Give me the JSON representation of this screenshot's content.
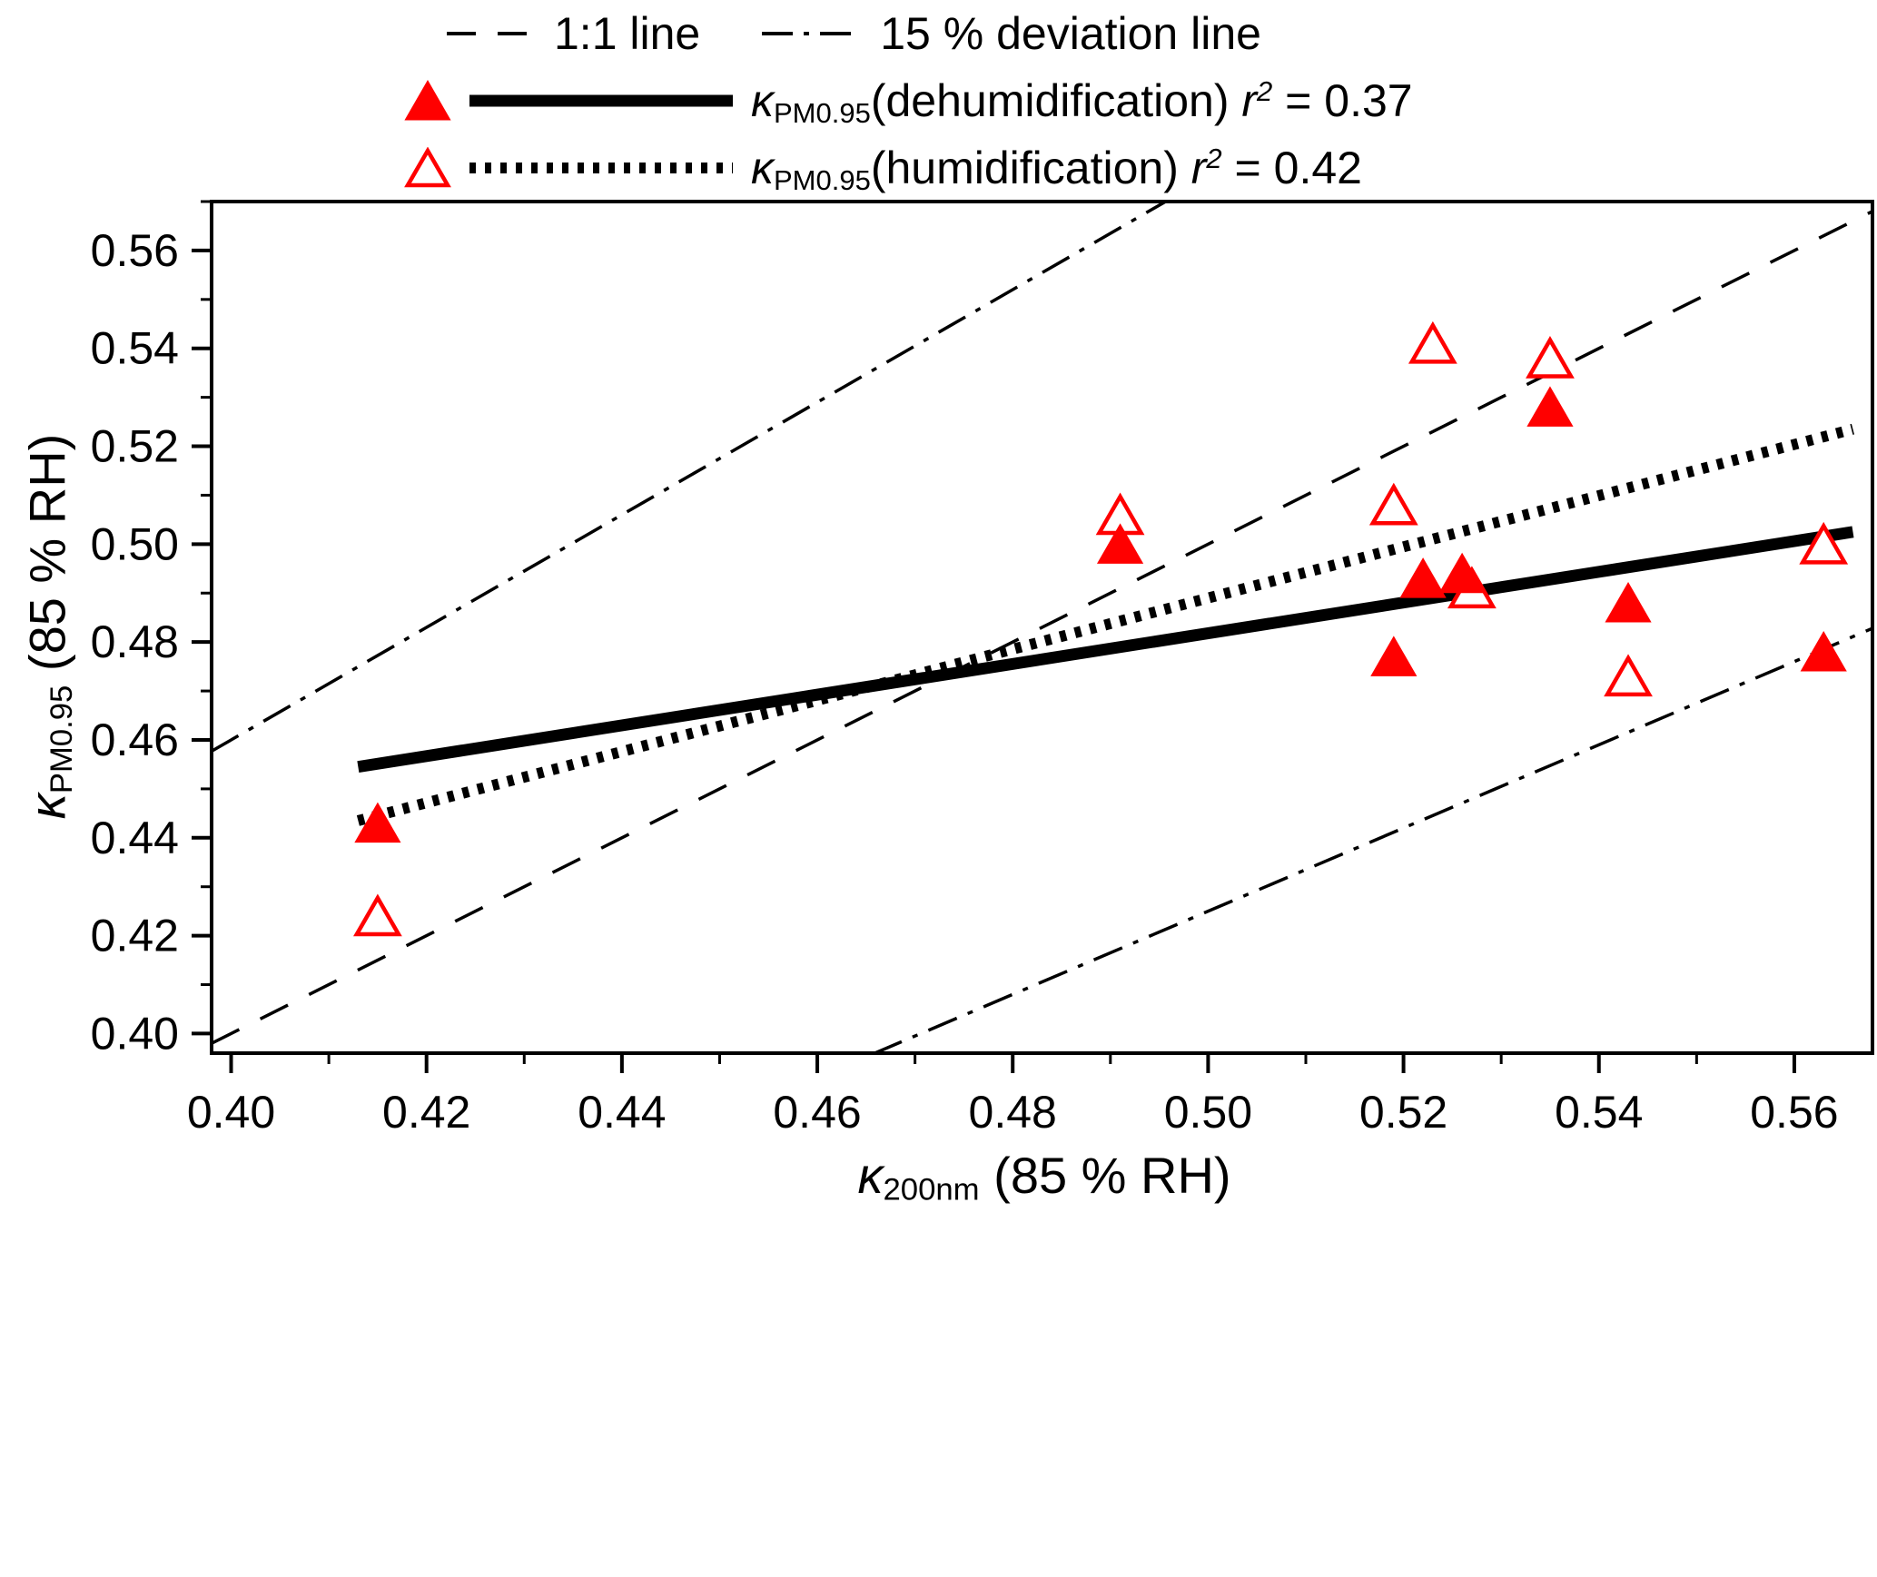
{
  "colors": {
    "marker": "#ff0000",
    "line": "#000000",
    "background": "#ffffff"
  },
  "legend": {
    "ref_1to1": "1:1 line",
    "ref_deviation": "15 % deviation line",
    "series": [
      {
        "kappa": "κ",
        "kappa_sub": "PM0.95",
        "label": "(dehumidification) ",
        "r_symbol": "r",
        "r_exponent": "2",
        "r_value": " = 0.37"
      },
      {
        "kappa": "κ",
        "kappa_sub": "PM0.95",
        "label": "(humidification) ",
        "r_symbol": "r",
        "r_exponent": "2",
        "r_value": " = 0.42"
      }
    ]
  },
  "axes": {
    "x": {
      "kappa": "κ",
      "sub": "200nm",
      "rest": " (85 % RH)"
    },
    "y": {
      "kappa": "κ",
      "sub": "PM0.95",
      "rest": " (85 % RH)"
    }
  },
  "chart_data": {
    "type": "scatter",
    "title": "",
    "xlabel": "κ_200nm (85 % RH)",
    "ylabel": "κ_PM0.95 (85 % RH)",
    "xlim": [
      0.398,
      0.568
    ],
    "ylim": [
      0.396,
      0.57
    ],
    "major_tick_step": 0.02,
    "minor_tick_step": 0.01,
    "x_major_ticks": [
      0.4,
      0.42,
      0.44,
      0.46,
      0.48,
      0.5,
      0.52,
      0.54,
      0.56
    ],
    "y_major_ticks": [
      0.4,
      0.42,
      0.44,
      0.46,
      0.48,
      0.5,
      0.52,
      0.54,
      0.56
    ],
    "grid": false,
    "legend_position": "top",
    "series": [
      {
        "name": "κ_PM0.95(dehumidification)",
        "marker": "filled-triangle",
        "color": "#ff0000",
        "r2": 0.37,
        "points": [
          [
            0.415,
            0.443
          ],
          [
            0.491,
            0.5
          ],
          [
            0.519,
            0.477
          ],
          [
            0.522,
            0.493
          ],
          [
            0.526,
            0.494
          ],
          [
            0.535,
            0.528
          ],
          [
            0.543,
            0.488
          ],
          [
            0.563,
            0.478
          ]
        ],
        "fit": {
          "style": "solid",
          "x1": 0.413,
          "y1": 0.4545,
          "x2": 0.566,
          "y2": 0.5025
        }
      },
      {
        "name": "κ_PM0.95(humidification)",
        "marker": "open-triangle",
        "color": "#ff0000",
        "r2": 0.42,
        "points": [
          [
            0.415,
            0.424
          ],
          [
            0.491,
            0.506
          ],
          [
            0.519,
            0.508
          ],
          [
            0.523,
            0.541
          ],
          [
            0.527,
            0.491
          ],
          [
            0.535,
            0.538
          ],
          [
            0.543,
            0.473
          ],
          [
            0.563,
            0.5
          ]
        ],
        "fit": {
          "style": "dotted",
          "x1": 0.413,
          "y1": 0.4435,
          "x2": 0.566,
          "y2": 0.5235
        }
      }
    ],
    "reference_lines": [
      {
        "name": "1:1 line",
        "slope": 1,
        "intercept": 0,
        "style": "dashed"
      },
      {
        "name": "+15 % deviation line",
        "slope": 1.15,
        "intercept": 0,
        "style": "dashdot"
      },
      {
        "name": "-15 % deviation line",
        "slope": 0.85,
        "intercept": 0,
        "style": "dashdot"
      }
    ]
  }
}
